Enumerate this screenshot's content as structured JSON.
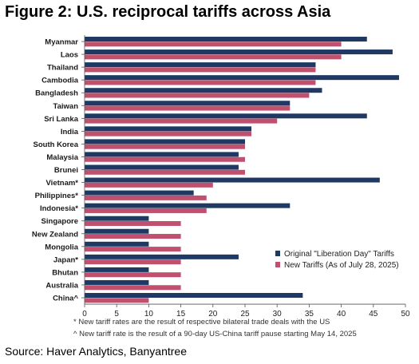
{
  "header": {
    "title": "Figure 2: U.S. reciprocal tariffs across Asia"
  },
  "chart_data": {
    "type": "bar",
    "orientation": "horizontal",
    "title": "",
    "xlabel": "",
    "ylabel": "",
    "xlim": [
      0,
      50
    ],
    "xticks": [
      0,
      5,
      10,
      15,
      20,
      25,
      30,
      35,
      40,
      45,
      50
    ],
    "grid": false,
    "legend_position": "bottom-right",
    "categories": [
      "Myanmar",
      "Laos",
      "Thailand",
      "Cambodia",
      "Bangladesh",
      "Taiwan",
      "Sri Lanka",
      "India",
      "South Korea",
      "Malaysia",
      "Brunei",
      "Vietnam*",
      "Philippines*",
      "Indonesia*",
      "Singapore",
      "New Zealand",
      "Mongolia",
      "Japan*",
      "Bhutan",
      "Australia",
      "China^"
    ],
    "series": [
      {
        "name": "Original \"Liberation Day\" Tariffs",
        "color": "#1f3864",
        "values": [
          44,
          48,
          36,
          49,
          37,
          32,
          44,
          26,
          25,
          24,
          24,
          46,
          17,
          32,
          10,
          10,
          10,
          24,
          10,
          10,
          34
        ]
      },
      {
        "name": "New Tariffs (As of July 28, 2025)",
        "color": "#c0506e",
        "values": [
          40,
          40,
          36,
          36,
          35,
          32,
          30,
          26,
          25,
          25,
          25,
          20,
          19,
          19,
          15,
          15,
          15,
          15,
          15,
          15,
          10
        ]
      }
    ]
  },
  "notes": {
    "note1": "* New tariff rates are the result of respective bilateral trade deals with the US",
    "note2": "^ New tariff rate is the result of a 90-day US-China tariff pause starting May 14, 2025"
  },
  "footer": {
    "source": "Source: Haver Analytics, Banyantree"
  }
}
